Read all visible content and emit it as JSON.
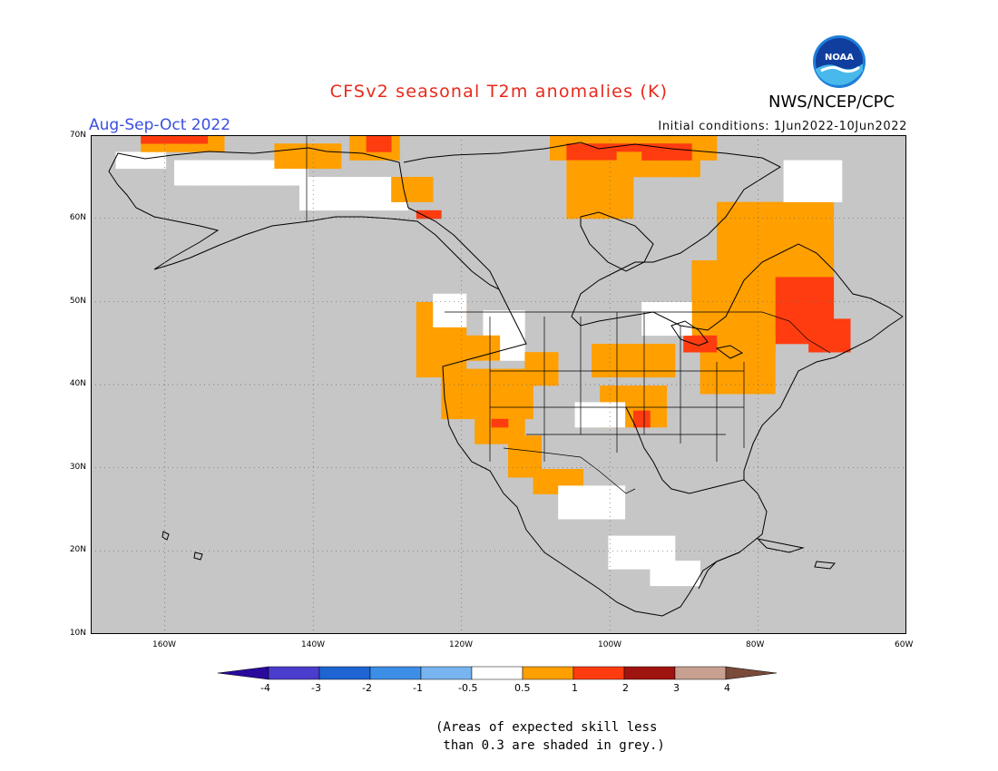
{
  "title": "CFSv2 seasonal T2m anomalies (K)",
  "period": "Aug-Sep-Oct 2022",
  "initial_conditions": "Initial conditions: 1Jun2022-10Jun2022",
  "organization": "NWS/NCEP/CPC",
  "logo_text": "NOAA",
  "map": {
    "region": "North America",
    "lon_range": [
      -170,
      -60
    ],
    "lat_range": [
      10,
      70
    ],
    "lat_labels": [
      "70N",
      "60N",
      "50N",
      "40N",
      "30N",
      "20N",
      "10N"
    ],
    "lon_labels": [
      "160W",
      "140W",
      "120W",
      "100W",
      "80W",
      "60W"
    ],
    "gridlines": "dotted",
    "colors": {
      "no_skill_grey": "#c6c6c6",
      "near_zero": "#ffffff",
      "warm_0_5_to_1": "#ff9f00",
      "warm_1_to_2": "#ff3c0f"
    }
  },
  "colorbar": {
    "ticks": [
      "-4",
      "-3",
      "-2",
      "-1",
      "-0.5",
      "0.5",
      "1",
      "2",
      "3",
      "4"
    ],
    "colors": [
      "#2a0a9c",
      "#4a3ccc",
      "#1e64d2",
      "#3c8ee6",
      "#78b4f0",
      "#ffffff",
      "#ff9f00",
      "#ff3c0f",
      "#a0140f",
      "#c8a090",
      "#7a4a3a"
    ]
  },
  "footnote": "(Areas of expected skill less\n than 0.3 are shaded in grey.)"
}
